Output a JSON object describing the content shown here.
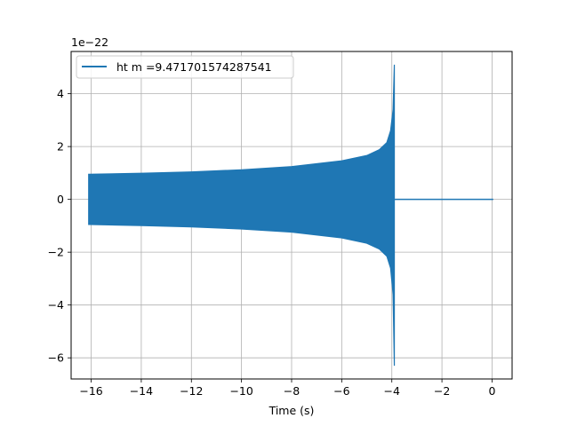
{
  "chart_data": {
    "type": "line",
    "title": "",
    "xlabel": "Time (s)",
    "ylabel": "",
    "y_scale_label": "1e−22",
    "xlim": [
      -16.8,
      0.8
    ],
    "ylim": [
      -6.8,
      5.6
    ],
    "x_ticks": [
      -16,
      -14,
      -12,
      -10,
      -8,
      -6,
      -4,
      -2,
      0
    ],
    "x_tick_labels": [
      "−16",
      "−14",
      "−12",
      "−10",
      "−8",
      "−6",
      "−4",
      "−2",
      "0"
    ],
    "y_ticks": [
      -6,
      -4,
      -2,
      0,
      2,
      4
    ],
    "y_tick_labels": [
      "−6",
      "−4",
      "−2",
      "0",
      "2",
      "4"
    ],
    "grid": true,
    "legend_position": "top-left",
    "series": [
      {
        "name": "ht m =9.471701574287541",
        "color": "#1f77b4",
        "envelope": {
          "x": [
            -16.1,
            -14,
            -12,
            -10,
            -8,
            -6,
            -5,
            -4.5,
            -4.2,
            -4.05,
            -3.95,
            -3.9
          ],
          "upper": [
            0.95,
            0.99,
            1.04,
            1.12,
            1.24,
            1.46,
            1.66,
            1.88,
            2.15,
            2.6,
            3.4,
            5.1
          ],
          "lower": [
            -0.95,
            -0.99,
            -1.04,
            -1.12,
            -1.24,
            -1.46,
            -1.66,
            -1.88,
            -2.15,
            -2.6,
            -3.6,
            -6.3
          ]
        },
        "flat": {
          "x": [
            -3.85,
            0.05
          ],
          "y": [
            0,
            0
          ]
        }
      }
    ]
  }
}
